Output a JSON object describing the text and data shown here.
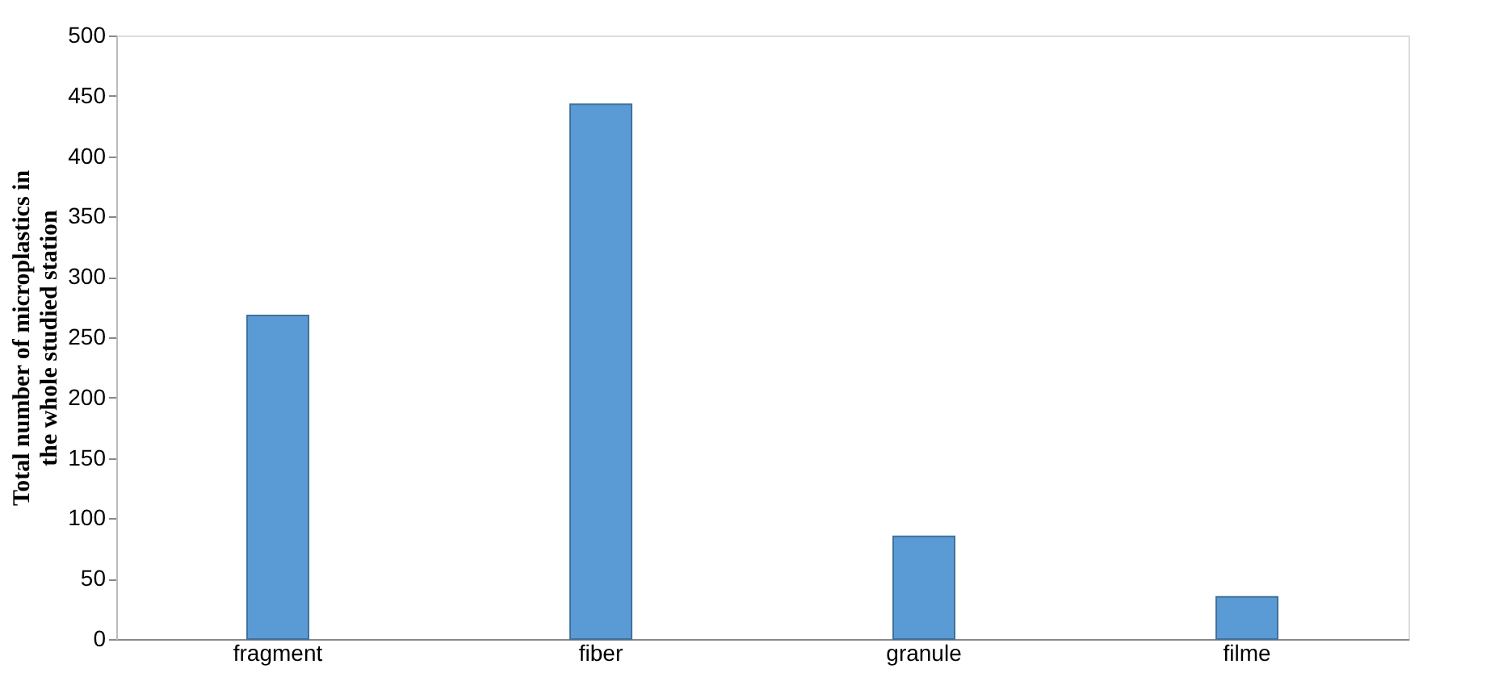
{
  "chart_data": {
    "type": "bar",
    "ylabel": "Total number of microplastics in the whole studied station",
    "categories": [
      "fragment",
      "fiber",
      "granule",
      "filme"
    ],
    "values": [
      268,
      443,
      85,
      35
    ],
    "color": "#5b9bd5",
    "ylim": [
      0,
      500
    ],
    "yticks": [
      0,
      50,
      100,
      150,
      200,
      250,
      300,
      350,
      400,
      450,
      500
    ],
    "grid": false
  }
}
